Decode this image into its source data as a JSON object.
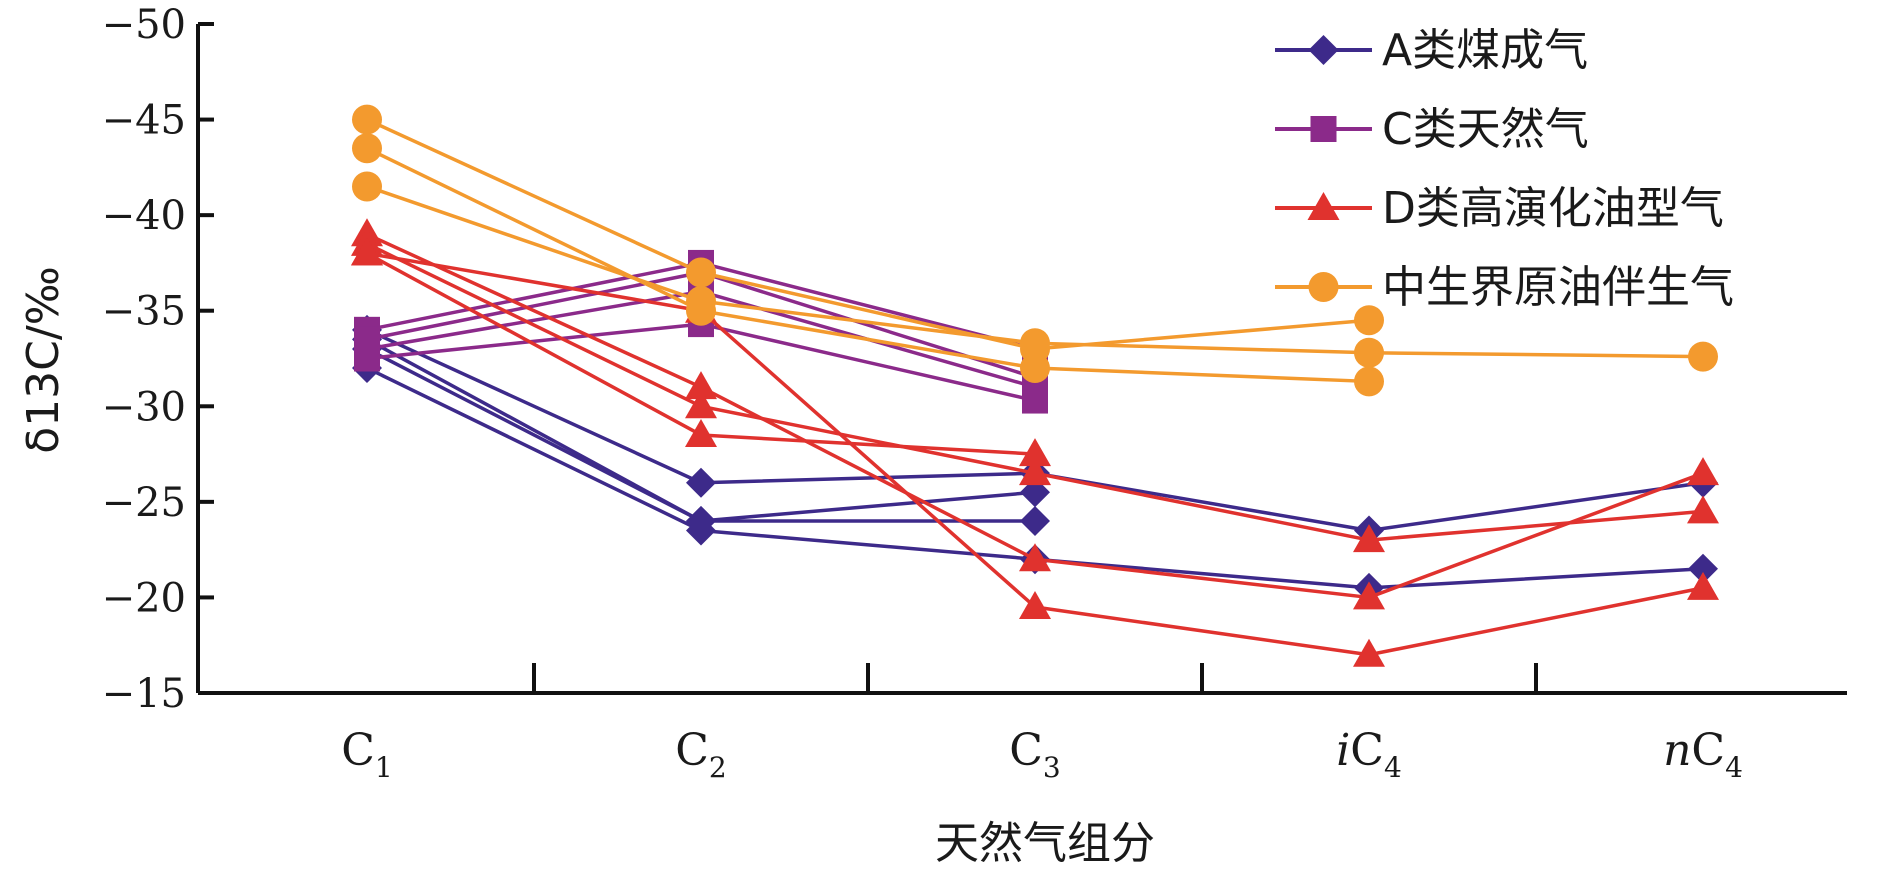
{
  "chart_data": {
    "type": "line",
    "xlabel": "天然气组分",
    "ylabel": "δ13C/‰",
    "categories": [
      {
        "label": "C",
        "sub": "1",
        "prefix": ""
      },
      {
        "label": "C",
        "sub": "2",
        "prefix": ""
      },
      {
        "label": "C",
        "sub": "3",
        "prefix": ""
      },
      {
        "label": "C",
        "sub": "4",
        "prefix": "i"
      },
      {
        "label": "C",
        "sub": "4",
        "prefix": "n"
      }
    ],
    "y_ticks": [
      -50,
      -45,
      -40,
      -35,
      -30,
      -25,
      -20,
      -15
    ],
    "ylim": [
      -50,
      -15
    ],
    "y_reversed": true,
    "grid": false,
    "legend_position": "top-right",
    "groups": [
      {
        "name": "A类煤成气",
        "color": "#3d2a8a",
        "marker": "diamond",
        "series": [
          [
            -34,
            -26,
            -26.5,
            -23.5,
            -26
          ],
          [
            -33.5,
            -24,
            -25.5,
            null,
            null
          ],
          [
            -33,
            -24,
            -24,
            null,
            null
          ],
          [
            -32,
            -23.5,
            -22,
            -20.5,
            -21.5
          ]
        ]
      },
      {
        "name": "C类天然气",
        "color": "#8b2a8a",
        "marker": "square",
        "series": [
          [
            -34,
            -37.5,
            -33,
            null,
            null
          ],
          [
            -33.5,
            -37,
            -31.5,
            null,
            null
          ],
          [
            -33,
            -36,
            -31,
            null,
            null
          ],
          [
            -32.5,
            -34.3,
            -30.3,
            null,
            null
          ]
        ]
      },
      {
        "name": "D类高演化油型气",
        "color": "#e0322e",
        "marker": "triangle",
        "series": [
          [
            -39,
            -31,
            -22,
            -20,
            -26.5
          ],
          [
            -38.5,
            -30,
            -26.5,
            -23,
            -24.5
          ],
          [
            -38,
            -28.5,
            -27.5,
            null,
            null
          ],
          [
            -38,
            -35,
            -19.5,
            -17,
            -20.5
          ]
        ]
      },
      {
        "name": "中生界原油伴生气",
        "color": "#f39a2e",
        "marker": "circle",
        "series": [
          [
            -45,
            -37,
            -33,
            -34.5,
            null
          ],
          [
            -43.5,
            -35,
            -32,
            -31.3,
            null
          ],
          [
            -41.5,
            -35.5,
            -33.3,
            -32.8,
            -32.6
          ]
        ]
      }
    ]
  }
}
